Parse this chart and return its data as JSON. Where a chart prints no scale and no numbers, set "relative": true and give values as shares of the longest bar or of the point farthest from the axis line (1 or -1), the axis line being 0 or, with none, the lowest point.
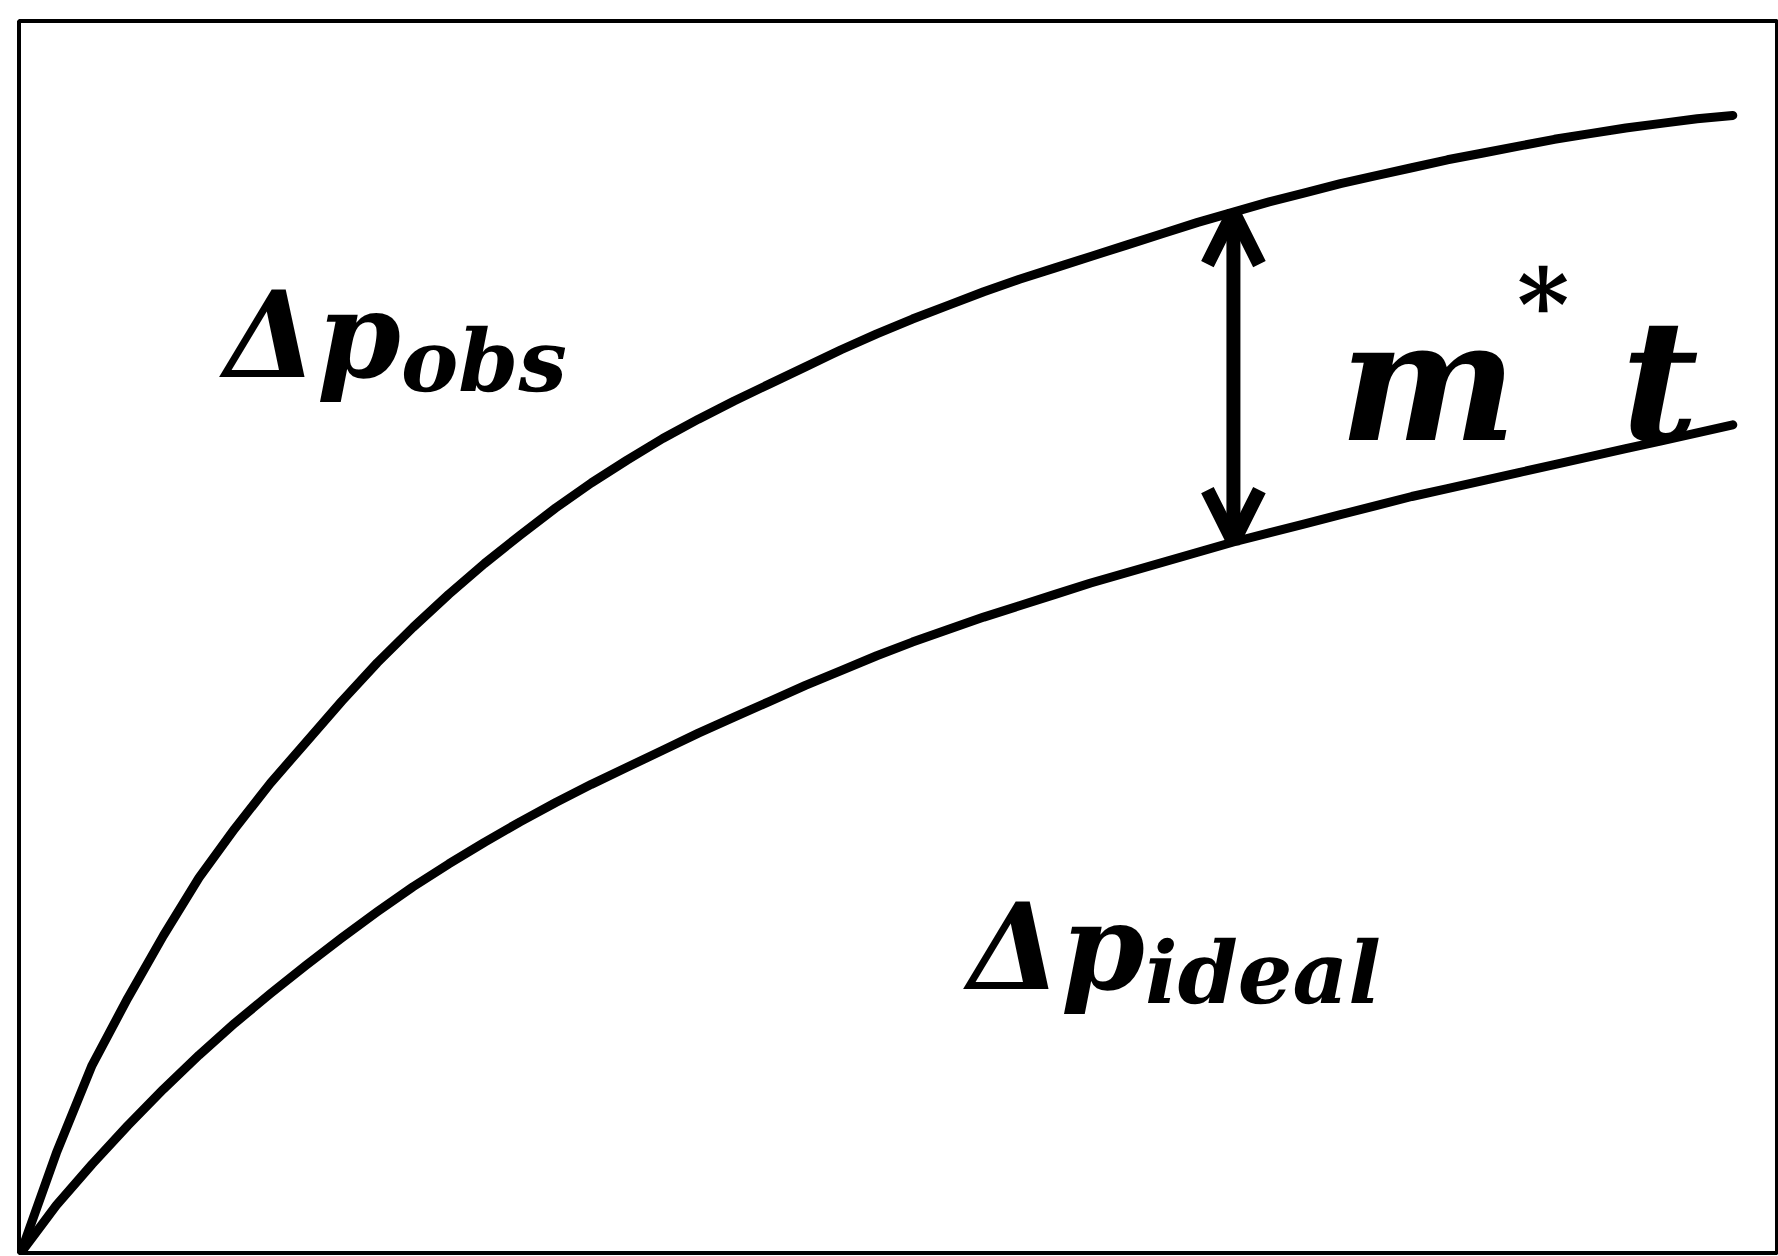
{
  "chart_data": {
    "type": "line",
    "relative": true,
    "categories": [
      null,
      null,
      null,
      null,
      null,
      null,
      null,
      null,
      null,
      null,
      null,
      null,
      null,
      null,
      null,
      null,
      null,
      null,
      null,
      null,
      null,
      null,
      null,
      null,
      null,
      null,
      null,
      null,
      null,
      null,
      null,
      null,
      null,
      null,
      null,
      null,
      null,
      null,
      null,
      null,
      null,
      null,
      null,
      null,
      null,
      null,
      null,
      null,
      null
    ],
    "series": [
      {
        "name": "Δp$_{obs}$",
        "color": "#000000",
        "values": [
          0,
          0.088,
          0.165,
          0.224,
          0.279,
          0.33,
          0.373,
          0.413,
          0.449,
          0.485,
          0.519,
          0.55,
          0.579,
          0.606,
          0.631,
          0.655,
          0.677,
          0.697,
          0.716,
          0.733,
          0.749,
          0.764,
          0.779,
          0.794,
          0.808,
          0.821,
          0.833,
          0.845,
          0.856,
          0.866,
          0.876,
          0.886,
          0.896,
          0.906,
          0.915,
          0.924,
          0.932,
          0.94,
          0.947,
          0.954,
          0.961,
          0.967,
          0.973,
          0.979,
          0.984,
          0.989,
          0.993,
          0.997,
          1
        ]
      },
      {
        "name": "Δp$_{ideal}$",
        "color": "#000000",
        "values": [
          0,
          0.042,
          0.078,
          0.112,
          0.144,
          0.174,
          0.202,
          0.228,
          0.253,
          0.277,
          0.3,
          0.322,
          0.342,
          0.361,
          0.379,
          0.396,
          0.412,
          0.427,
          0.442,
          0.457,
          0.471,
          0.485,
          0.499,
          0.512,
          0.525,
          0.537,
          0.548,
          0.559,
          0.569,
          0.579,
          0.589,
          0.598,
          0.607,
          0.616,
          0.625,
          0.633,
          0.641,
          0.649,
          0.657,
          0.665,
          0.672,
          0.679,
          0.686,
          0.693,
          0.7,
          0.707,
          0.714,
          0.721,
          0.728
        ]
      }
    ],
    "annotations": [
      "m$^{*}$ t"
    ]
  }
}
